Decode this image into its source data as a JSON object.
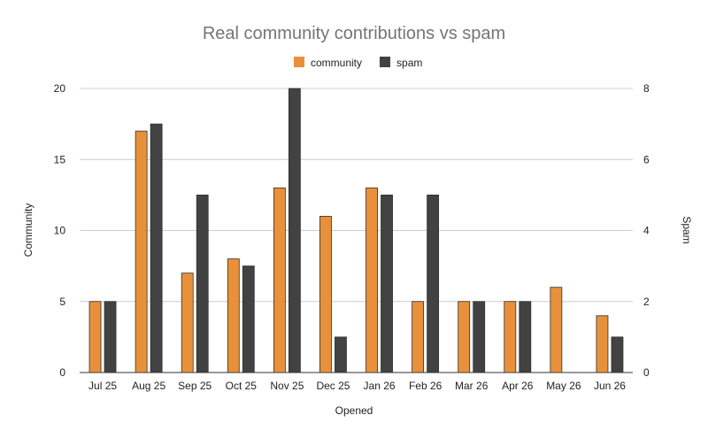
{
  "chart_data": {
    "type": "bar",
    "title": "Real community contributions vs spam",
    "xlabel": "Opened",
    "ylabel_left": "Community",
    "ylabel_right": "Spam",
    "categories": [
      "Jul 25",
      "Aug 25",
      "Sep 25",
      "Oct 25",
      "Nov 25",
      "Dec 25",
      "Jan 26",
      "Feb 26",
      "Mar 26",
      "Apr 26",
      "May 26",
      "Jun 26"
    ],
    "series": [
      {
        "name": "community",
        "axis": "left",
        "color": "#e8913a",
        "values": [
          5,
          17,
          7,
          8,
          13,
          11,
          13,
          5,
          5,
          5,
          6,
          4
        ]
      },
      {
        "name": "spam",
        "axis": "right",
        "color": "#424242",
        "values": [
          2,
          7,
          5,
          3,
          8,
          1,
          5,
          5,
          2,
          2,
          0,
          1
        ]
      }
    ],
    "ylim_left": [
      0,
      20
    ],
    "ylim_right": [
      0,
      8
    ],
    "yticks_left": [
      "0",
      "5",
      "10",
      "15",
      "20"
    ],
    "yticks_right": [
      "0",
      "2",
      "4",
      "6",
      "8"
    ],
    "grid": true,
    "legend_position": "top"
  }
}
